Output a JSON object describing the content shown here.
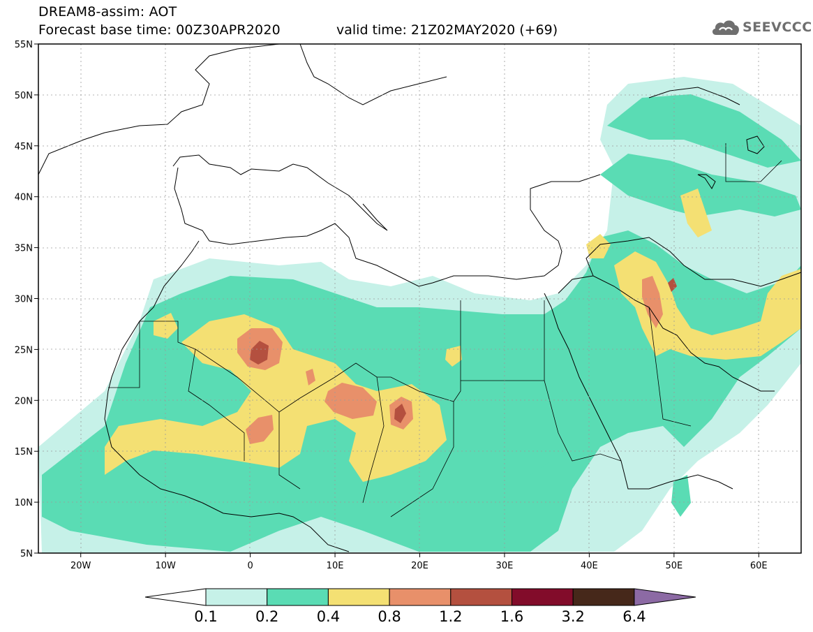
{
  "header": {
    "title_line1": "DREAM8-assim: AOT",
    "title_line2": "Forecast base time: 00Z30APR2020",
    "valid_time": "valid time: 21Z02MAY2020 (+69)",
    "logo_text": "SEEVCCC"
  },
  "map": {
    "lat_labels": [
      "55N",
      "50N",
      "45N",
      "40N",
      "35N",
      "30N",
      "25N",
      "20N",
      "15N",
      "10N",
      "5N"
    ],
    "lat_values": [
      55,
      50,
      45,
      40,
      35,
      30,
      25,
      20,
      15,
      10,
      5
    ],
    "lon_labels": [
      "20W",
      "10W",
      "0",
      "10E",
      "20E",
      "30E",
      "40E",
      "50E",
      "60E"
    ],
    "lon_values": [
      -20,
      -10,
      0,
      10,
      20,
      30,
      40,
      50,
      60
    ],
    "lon_range": [
      -25,
      65
    ],
    "lat_range": [
      5,
      55
    ]
  },
  "colorbar": {
    "labels": [
      "0.1",
      "0.2",
      "0.4",
      "0.8",
      "1.2",
      "1.6",
      "3.2",
      "6.4"
    ],
    "colors": [
      "#ffffff",
      "#c6f1e8",
      "#5adcb4",
      "#f4e073",
      "#e8906a",
      "#b4503f",
      "#820c2a",
      "#46281a",
      "#8c6aa4"
    ]
  }
}
